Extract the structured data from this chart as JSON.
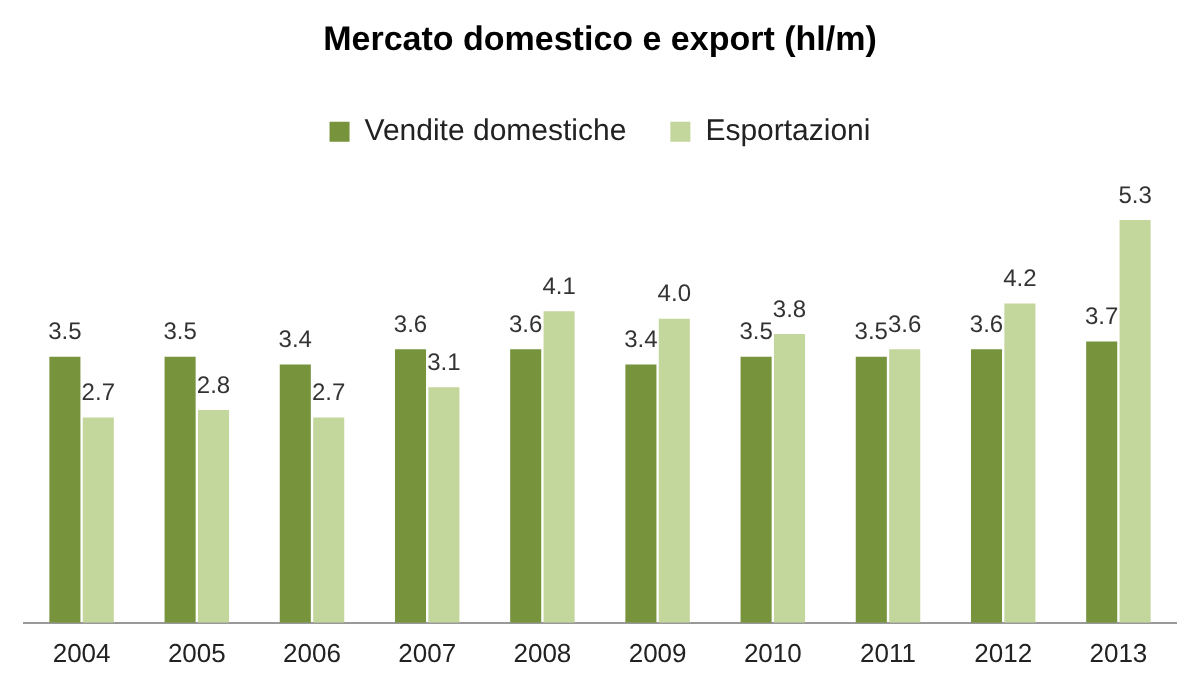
{
  "chart_data": {
    "type": "bar",
    "title": "Mercato domestico e export (hl/m)",
    "categories": [
      "2004",
      "2005",
      "2006",
      "2007",
      "2008",
      "2009",
      "2010",
      "2011",
      "2012",
      "2013"
    ],
    "series": [
      {
        "name": "Vendite domestiche",
        "color": "#77933c",
        "values": [
          3.5,
          3.5,
          3.4,
          3.6,
          3.6,
          3.4,
          3.5,
          3.5,
          3.6,
          3.7
        ],
        "value_labels": [
          "3.5",
          "3.5",
          "3.4",
          "3.6",
          "3.6",
          "3.4",
          "3.5",
          "3.5",
          "3.6",
          "3.7"
        ]
      },
      {
        "name": "Esportazioni",
        "color": "#c3d69b",
        "values": [
          2.7,
          2.8,
          2.7,
          3.1,
          4.1,
          4.0,
          3.8,
          3.6,
          4.2,
          5.3
        ],
        "value_labels": [
          "2.7",
          "2.8",
          "2.7",
          "3.1",
          "4.1",
          "4.0",
          "3.8",
          "3.6",
          "4.2",
          "5.3"
        ]
      }
    ],
    "legend": "top",
    "grid": false
  }
}
